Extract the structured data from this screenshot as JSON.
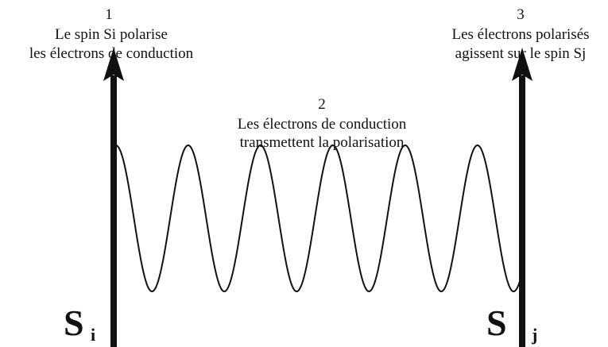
{
  "labels": [
    {
      "number": "1",
      "lines": [
        "Le spin Si polarise",
        "les électrons de conduction"
      ]
    },
    {
      "number": "2",
      "lines": [
        "Les électrons de conduction",
        "transmettent la polarisation"
      ]
    },
    {
      "number": "3",
      "lines": [
        "Les électrons polarisés",
        "agissent sur le spin Sj"
      ]
    }
  ],
  "spins": [
    {
      "symbol": "S",
      "subscript": "i"
    },
    {
      "symbol": "S",
      "subscript": "j"
    }
  ]
}
